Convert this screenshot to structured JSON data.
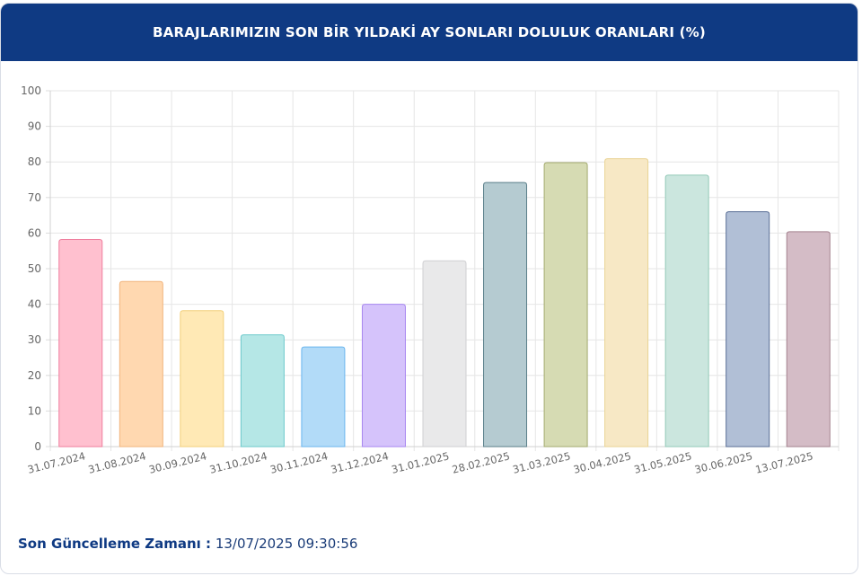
{
  "header": {
    "title": "BARAJLARIMIZIN SON BİR YILDAKİ AY SONLARI DOLULUK ORANLARI (%)"
  },
  "footer": {
    "label": "Son Güncelleme Zamanı :",
    "value": "13/07/2025 09:30:56"
  },
  "chart_data": {
    "type": "bar",
    "title": "",
    "xlabel": "",
    "ylabel": "",
    "ylim": [
      0,
      100
    ],
    "yticks": [
      0,
      10,
      20,
      30,
      40,
      50,
      60,
      70,
      80,
      90,
      100
    ],
    "grid": true,
    "categories": [
      "31.07.2024",
      "31.08.2024",
      "30.09.2024",
      "31.10.2024",
      "30.11.2024",
      "31.12.2024",
      "31.01.2025",
      "28.02.2025",
      "31.03.2025",
      "30.04.2025",
      "31.05.2025",
      "30.06.2025",
      "13.07.2025"
    ],
    "values": [
      58.2,
      46.4,
      38.2,
      31.4,
      28.0,
      40.0,
      52.2,
      74.2,
      79.8,
      80.9,
      76.3,
      66.0,
      60.4
    ],
    "fill_colors": [
      "#ffc0cf",
      "#ffd8b0",
      "#ffe9b5",
      "#b5e7e6",
      "#b2dbf8",
      "#d5c3fb",
      "#e9e9ea",
      "#b5cbd1",
      "#d6dbb3",
      "#f7e8c5",
      "#cbe6de",
      "#b1bfd6",
      "#d4bcc6"
    ],
    "border_colors": [
      "#ef7e9e",
      "#f1b47c",
      "#f3d07b",
      "#6cc9cb",
      "#6ab5ee",
      "#a786f0",
      "#cfcfd2",
      "#5b7f8a",
      "#a4ab6f",
      "#e9d394",
      "#93c9b8",
      "#5a6f96",
      "#a4828f"
    ]
  }
}
